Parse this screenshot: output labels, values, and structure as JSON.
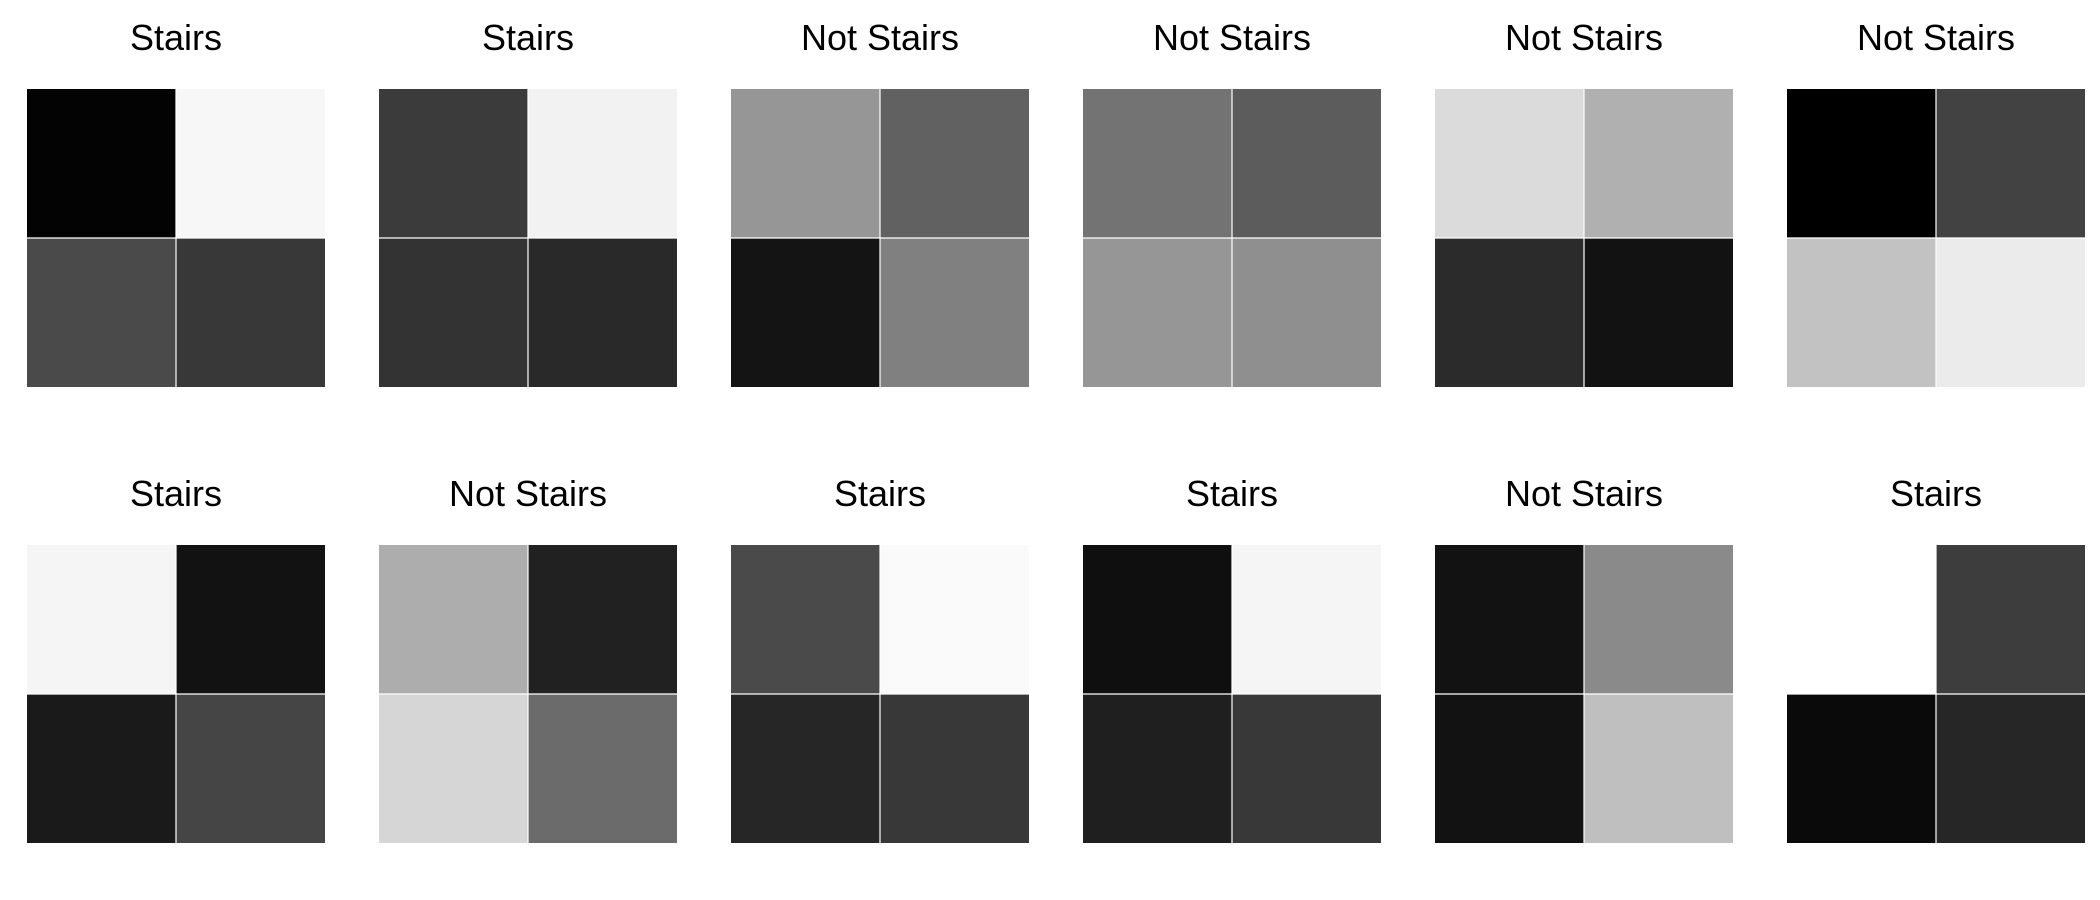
{
  "chart_data": [
    {
      "type": "heatmap",
      "title": "Stairs",
      "colormap": "gray",
      "value_range": [
        0,
        1
      ],
      "values": [
        [
          0.01,
          0.97
        ],
        [
          0.29,
          0.22
        ]
      ]
    },
    {
      "type": "heatmap",
      "title": "Stairs",
      "colormap": "gray",
      "value_range": [
        0,
        1
      ],
      "values": [
        [
          0.23,
          0.95
        ],
        [
          0.2,
          0.16
        ]
      ]
    },
    {
      "type": "heatmap",
      "title": "Not Stairs",
      "colormap": "gray",
      "value_range": [
        0,
        1
      ],
      "values": [
        [
          0.59,
          0.38
        ],
        [
          0.08,
          0.5
        ]
      ]
    },
    {
      "type": "heatmap",
      "title": "Not Stairs",
      "colormap": "gray",
      "value_range": [
        0,
        1
      ],
      "values": [
        [
          0.45,
          0.36
        ],
        [
          0.59,
          0.56
        ]
      ]
    },
    {
      "type": "heatmap",
      "title": "Not Stairs",
      "colormap": "gray",
      "value_range": [
        0,
        1
      ],
      "values": [
        [
          0.86,
          0.69
        ],
        [
          0.17,
          0.07
        ]
      ]
    },
    {
      "type": "heatmap",
      "title": "Not Stairs",
      "colormap": "gray",
      "value_range": [
        0,
        1
      ],
      "values": [
        [
          0.0,
          0.26
        ],
        [
          0.76,
          0.92
        ]
      ]
    },
    {
      "type": "heatmap",
      "title": "Stairs",
      "colormap": "gray",
      "value_range": [
        0,
        1
      ],
      "values": [
        [
          0.96,
          0.07
        ],
        [
          0.1,
          0.27
        ]
      ]
    },
    {
      "type": "heatmap",
      "title": "Not Stairs",
      "colormap": "gray",
      "value_range": [
        0,
        1
      ],
      "values": [
        [
          0.68,
          0.13
        ],
        [
          0.84,
          0.42
        ]
      ]
    },
    {
      "type": "heatmap",
      "title": "Stairs",
      "colormap": "gray",
      "value_range": [
        0,
        1
      ],
      "values": [
        [
          0.29,
          0.98
        ],
        [
          0.15,
          0.22
        ]
      ]
    },
    {
      "type": "heatmap",
      "title": "Stairs",
      "colormap": "gray",
      "value_range": [
        0,
        1
      ],
      "values": [
        [
          0.06,
          0.96
        ],
        [
          0.12,
          0.22
        ]
      ]
    },
    {
      "type": "heatmap",
      "title": "Not Stairs",
      "colormap": "gray",
      "value_range": [
        0,
        1
      ],
      "values": [
        [
          0.07,
          0.54
        ],
        [
          0.07,
          0.75
        ]
      ]
    },
    {
      "type": "heatmap",
      "title": "Stairs",
      "colormap": "gray",
      "value_range": [
        0,
        1
      ],
      "values": [
        [
          1.0,
          0.24
        ],
        [
          0.04,
          0.15
        ]
      ]
    }
  ]
}
